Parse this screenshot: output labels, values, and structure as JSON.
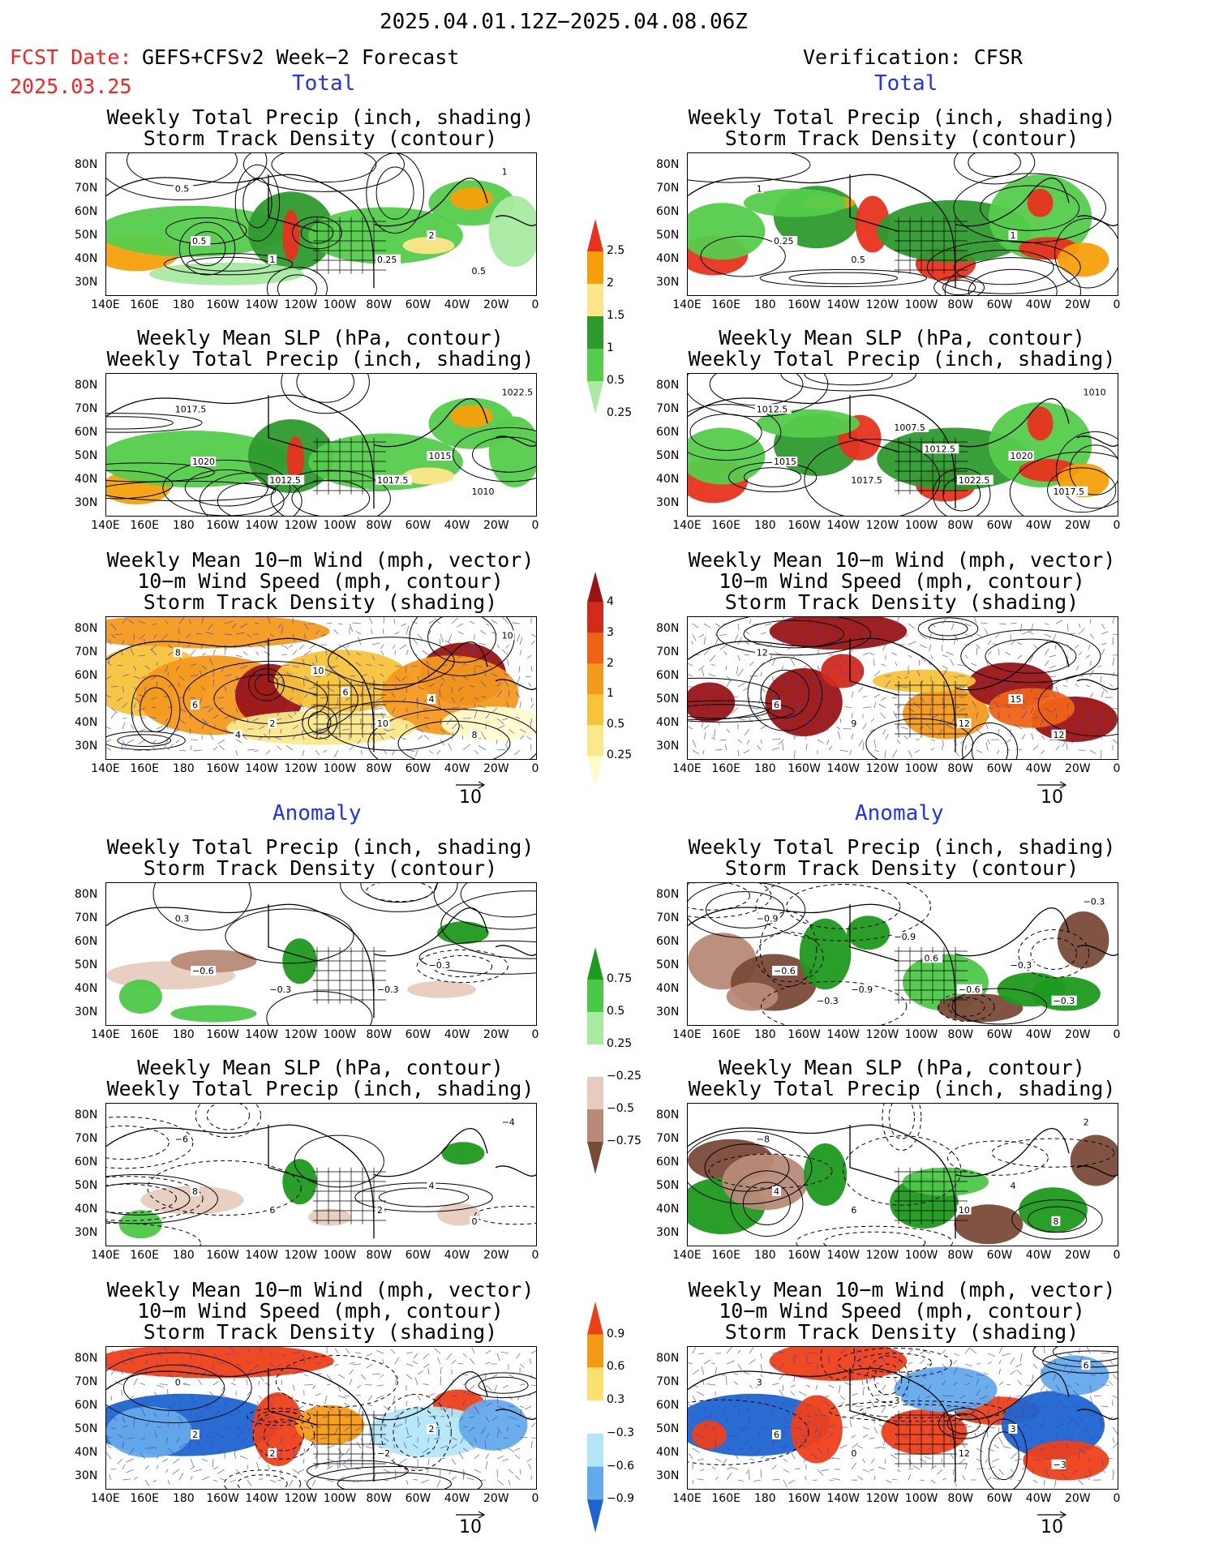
{
  "header": {
    "date_range": "2025.04.01.12Z−2025.04.08.06Z",
    "fcst_label": "FCST Date:",
    "fcst_model": "GEFS+CFSv2 Week−2 Forecast",
    "fcst_date": "2025.03.25",
    "verification": "Verification: CFSR"
  },
  "sections": {
    "total": "Total",
    "anomaly": "Anomaly"
  },
  "panel_titles": {
    "precip_storm": [
      "Weekly Total Precip (inch, shading)",
      "Storm Track Density (contour)"
    ],
    "slp_precip": [
      "Weekly Mean SLP (hPa, contour)",
      "Weekly Total Precip (inch, shading)"
    ],
    "wind_storm": [
      "Weekly Mean 10−m Wind (mph, vector)",
      "10−m Wind Speed (mph, contour)",
      "Storm Track Density (shading)"
    ]
  },
  "axes": {
    "lat_ticks": [
      "80N",
      "70N",
      "60N",
      "50N",
      "40N",
      "30N"
    ],
    "lon_ticks": [
      "140E",
      "160E",
      "180",
      "160W",
      "140W",
      "120W",
      "100W",
      "80W",
      "60W",
      "40W",
      "20W",
      "0"
    ]
  },
  "vector_ref": "10",
  "colorbars": {
    "precip_total": {
      "labels": [
        "2.5",
        "2",
        "1.5",
        "1",
        "0.5",
        "0.25"
      ],
      "colors": [
        "#e8321e",
        "#f5a00a",
        "#fde68a",
        "#2e9a2e",
        "#55cc4c",
        "#a8eaa0"
      ]
    },
    "storm_total": {
      "labels": [
        "4",
        "3",
        "2",
        "1",
        "0.5",
        "0.25"
      ],
      "colors": [
        "#9b1414",
        "#d42a1a",
        "#ef6414",
        "#f49a1c",
        "#f7c33a",
        "#fbe88a",
        "#fffccc"
      ]
    },
    "precip_anom": {
      "labels": [
        "0.75",
        "0.5",
        "0.25",
        "−0.25",
        "−0.5",
        "−0.75"
      ],
      "colors": [
        "#1e9a1e",
        "#4cc848",
        "#a8eaa0",
        "#ffffff",
        "#e8cbbf",
        "#b88a78",
        "#7a4a38"
      ]
    },
    "storm_anom": {
      "labels": [
        "0.9",
        "0.6",
        "0.3",
        "−0.3",
        "−0.6",
        "−0.9"
      ],
      "colors": [
        "#ee4018",
        "#f59a14",
        "#fbe070",
        "#ffffff",
        "#b4e6f5",
        "#64aaea",
        "#1e64d0"
      ]
    }
  },
  "panels": {
    "l1": [
      "0.5",
      "0.5",
      "1",
      "2",
      "0.25",
      "0.5",
      "1"
    ],
    "r1": [
      "1",
      "0.25",
      "0.5",
      "1"
    ],
    "l2": [
      "1017.5",
      "1020",
      "1012.5",
      "1015",
      "1017.5",
      "1010",
      "1022.5"
    ],
    "r2": [
      "1012.5",
      "1015",
      "1017.5",
      "1020",
      "1022.5",
      "1017.5",
      "1010",
      "1007.5",
      "1012.5"
    ],
    "l3": [
      "8",
      "6",
      "2",
      "4",
      "10",
      "8",
      "10",
      "10",
      "6",
      "4"
    ],
    "r3": [
      "12",
      "6",
      "9",
      "15",
      "12",
      "12"
    ],
    "l4": [
      "0.3",
      "−0.6",
      "−0.3",
      "−0.3",
      "−0.3"
    ],
    "r4": [
      "−0.9",
      "−0.6",
      "−0.9",
      "−0.3",
      "−0.6",
      "−0.3",
      "−0.3",
      "−0.9",
      "0.6",
      "−0.3"
    ],
    "l5": [
      "−6",
      "8",
      "6",
      "4",
      "2",
      "0",
      "−4"
    ],
    "r5": [
      "−8",
      "4",
      "6",
      "4",
      "10",
      "8",
      "2"
    ],
    "l6": [
      "0",
      "2",
      "2",
      "2",
      "−2"
    ],
    "r6": [
      "3",
      "6",
      "0",
      "3",
      "12",
      "−3",
      "6",
      "3"
    ]
  }
}
